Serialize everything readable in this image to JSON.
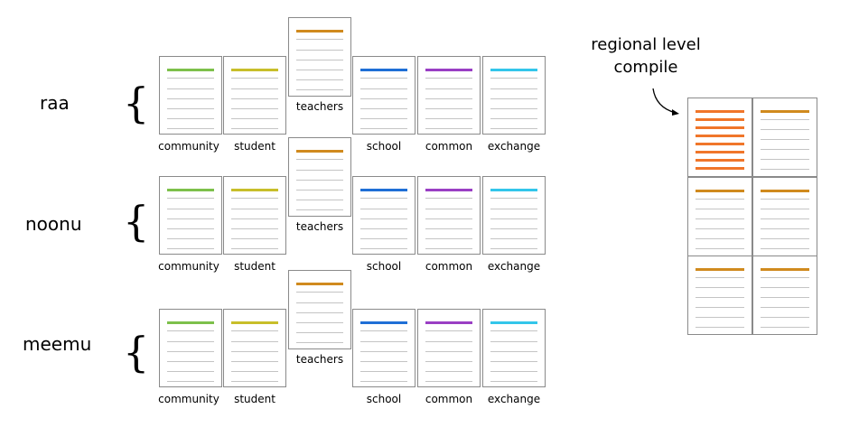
{
  "groups": [
    {
      "label": "raa",
      "brace": "{"
    },
    {
      "label": "noonu",
      "brace": "{"
    },
    {
      "label": "meemu",
      "brace": "{"
    }
  ],
  "card_labels": {
    "community": "community",
    "student": "student",
    "teachers": "teachers",
    "school": "school",
    "common": "common",
    "exchange": "exchange"
  },
  "card_colors": {
    "community": "#7dc04b",
    "student": "#c8be2a",
    "teachers": "#d08a1e",
    "school": "#1f6fd6",
    "common": "#9a3fc4",
    "exchange": "#33c6ea"
  },
  "regional": {
    "title_line1": "regional level",
    "title_line2": "compile",
    "highlight_color": "#f0762a",
    "header_color": "#d08a1e"
  }
}
